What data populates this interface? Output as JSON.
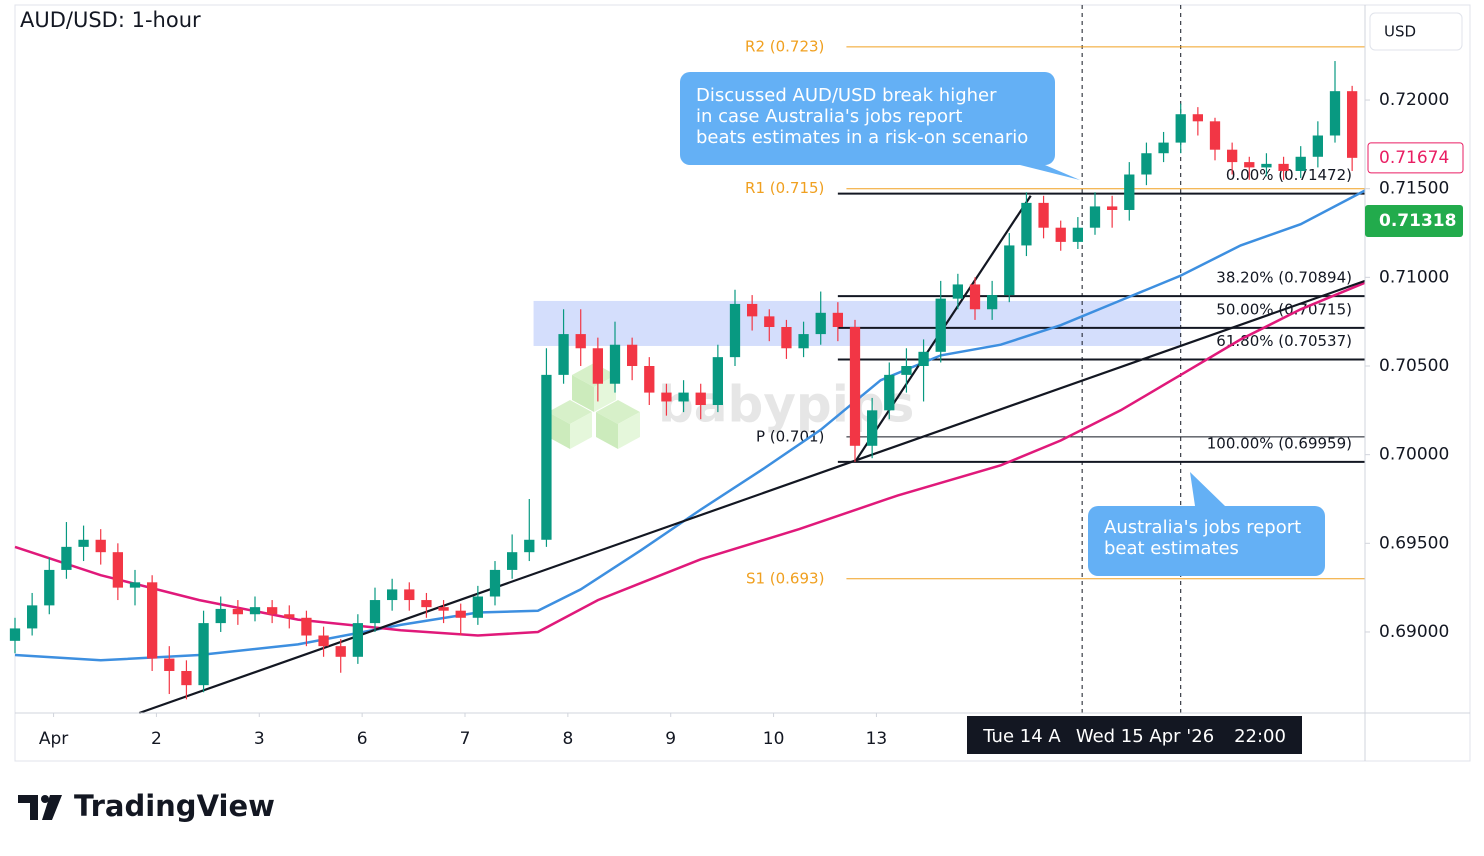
{
  "chart_data": {
    "type": "candlestick",
    "title": "AUD/USD: 1-hour",
    "currency": "USD",
    "watermark": "babypips",
    "brand": "TradingView",
    "up_color": "#089981",
    "down_color": "#f23645",
    "xlim": [
      0,
      315
    ],
    "ylim": [
      0.68543,
      0.72536
    ],
    "xticks": [
      {
        "value": 9,
        "label": "Apr"
      },
      {
        "value": 33,
        "label": "2"
      },
      {
        "value": 57,
        "label": "3"
      },
      {
        "value": 81,
        "label": "6"
      },
      {
        "value": 105,
        "label": "7"
      },
      {
        "value": 129,
        "label": "8"
      },
      {
        "value": 153,
        "label": "9"
      },
      {
        "value": 177,
        "label": "10"
      },
      {
        "value": 201,
        "label": "13"
      }
    ],
    "yticks": [
      {
        "value": 0.72,
        "label": "0.72000"
      },
      {
        "value": 0.715,
        "label": "0.71500"
      },
      {
        "value": 0.71,
        "label": "0.71000"
      },
      {
        "value": 0.705,
        "label": "0.70500"
      },
      {
        "value": 0.7,
        "label": "0.70000"
      },
      {
        "value": 0.695,
        "label": "0.69500"
      },
      {
        "value": 0.69,
        "label": "0.69000"
      }
    ],
    "crosshair_label": [
      "Tue 14 A",
      "Wed 15 Apr '26",
      "22:00"
    ],
    "vlines": [
      249,
      272
    ],
    "last_price": 0.71674,
    "last_price_color": "#e91e63",
    "marker_price": 0.71318,
    "marker_price_color": "#22ab4c",
    "candles": {
      "x": [
        0,
        4,
        8,
        12,
        16,
        20,
        24,
        28,
        32,
        36,
        40,
        44,
        48,
        52,
        56,
        60,
        64,
        68,
        72,
        76,
        80,
        84,
        88,
        92,
        96,
        100,
        104,
        108,
        112,
        116,
        120,
        124,
        128,
        132,
        136,
        140,
        144,
        148,
        152,
        156,
        160,
        164,
        168,
        172,
        176,
        180,
        184,
        188,
        192,
        196,
        200,
        204,
        208,
        212,
        216,
        220,
        224,
        228,
        232,
        236,
        240,
        244,
        248,
        252,
        256,
        260,
        264,
        268,
        272,
        276,
        280,
        284,
        288,
        292,
        296,
        300,
        304,
        308,
        312
      ],
      "open": [
        0.6895,
        0.6902,
        0.6915,
        0.6935,
        0.6948,
        0.6952,
        0.6945,
        0.6925,
        0.6928,
        0.6885,
        0.6878,
        0.687,
        0.6905,
        0.6913,
        0.691,
        0.6914,
        0.691,
        0.6908,
        0.6898,
        0.6892,
        0.6886,
        0.6905,
        0.6918,
        0.6924,
        0.6918,
        0.6914,
        0.6912,
        0.6908,
        0.692,
        0.6935,
        0.6945,
        0.6952,
        0.7045,
        0.7068,
        0.706,
        0.704,
        0.7062,
        0.705,
        0.7035,
        0.703,
        0.7035,
        0.7028,
        0.7055,
        0.7085,
        0.7078,
        0.7072,
        0.706,
        0.7068,
        0.708,
        0.7072,
        0.7005,
        0.7025,
        0.7045,
        0.705,
        0.7058,
        0.7088,
        0.7096,
        0.7082,
        0.709,
        0.7118,
        0.7142,
        0.7128,
        0.712,
        0.7128,
        0.714,
        0.7138,
        0.7158,
        0.717,
        0.7176,
        0.7192,
        0.7188,
        0.7172,
        0.7165,
        0.7162,
        0.7164,
        0.716,
        0.7168,
        0.718,
        0.7205
      ],
      "high": [
        0.6908,
        0.6922,
        0.6942,
        0.6962,
        0.696,
        0.6958,
        0.695,
        0.6935,
        0.6932,
        0.6892,
        0.6884,
        0.6912,
        0.692,
        0.6918,
        0.692,
        0.6918,
        0.6915,
        0.6912,
        0.6903,
        0.6896,
        0.691,
        0.6925,
        0.693,
        0.6928,
        0.6922,
        0.6918,
        0.6916,
        0.6926,
        0.694,
        0.6955,
        0.6975,
        0.706,
        0.7082,
        0.7082,
        0.7066,
        0.7075,
        0.7066,
        0.7055,
        0.704,
        0.7042,
        0.704,
        0.7062,
        0.7093,
        0.709,
        0.7082,
        0.7076,
        0.7075,
        0.7092,
        0.7086,
        0.7076,
        0.7032,
        0.7052,
        0.706,
        0.7065,
        0.7098,
        0.7102,
        0.71,
        0.7098,
        0.7125,
        0.7148,
        0.7146,
        0.7132,
        0.7134,
        0.7148,
        0.7146,
        0.7165,
        0.7176,
        0.7182,
        0.7198,
        0.7196,
        0.719,
        0.7176,
        0.7168,
        0.717,
        0.7168,
        0.7174,
        0.7188,
        0.7222,
        0.7208
      ],
      "low": [
        0.6888,
        0.6898,
        0.691,
        0.693,
        0.694,
        0.6938,
        0.6918,
        0.6915,
        0.6878,
        0.6865,
        0.6862,
        0.6866,
        0.69,
        0.6904,
        0.6906,
        0.6905,
        0.6902,
        0.6892,
        0.6886,
        0.6877,
        0.6882,
        0.69,
        0.6912,
        0.6912,
        0.6908,
        0.6905,
        0.6898,
        0.6904,
        0.6915,
        0.693,
        0.694,
        0.6948,
        0.704,
        0.705,
        0.703,
        0.7035,
        0.7042,
        0.7028,
        0.7022,
        0.7024,
        0.702,
        0.7024,
        0.705,
        0.707,
        0.7064,
        0.7054,
        0.7055,
        0.7062,
        0.7064,
        0.69959,
        0.6998,
        0.702,
        0.7035,
        0.703,
        0.7052,
        0.7082,
        0.7076,
        0.7076,
        0.7086,
        0.7112,
        0.7122,
        0.7115,
        0.7116,
        0.7124,
        0.7128,
        0.7132,
        0.7152,
        0.7165,
        0.717,
        0.718,
        0.7166,
        0.7158,
        0.7155,
        0.7157,
        0.7155,
        0.7156,
        0.7162,
        0.7176,
        0.716
      ],
      "close": [
        0.6902,
        0.6915,
        0.6935,
        0.6948,
        0.6952,
        0.6945,
        0.6925,
        0.6928,
        0.6885,
        0.6878,
        0.687,
        0.6905,
        0.6913,
        0.691,
        0.6914,
        0.691,
        0.6908,
        0.6898,
        0.6892,
        0.6886,
        0.6905,
        0.6918,
        0.6924,
        0.6918,
        0.6914,
        0.6912,
        0.6908,
        0.692,
        0.6935,
        0.6945,
        0.6952,
        0.7045,
        0.7068,
        0.706,
        0.704,
        0.7062,
        0.705,
        0.7035,
        0.703,
        0.7035,
        0.7028,
        0.7055,
        0.7085,
        0.7078,
        0.7072,
        0.706,
        0.7068,
        0.708,
        0.7072,
        0.7005,
        0.7025,
        0.7045,
        0.705,
        0.7058,
        0.7088,
        0.7096,
        0.7082,
        0.709,
        0.7118,
        0.7142,
        0.7128,
        0.712,
        0.7128,
        0.714,
        0.7138,
        0.7158,
        0.717,
        0.7176,
        0.7192,
        0.7188,
        0.7172,
        0.7165,
        0.7162,
        0.7164,
        0.716,
        0.7168,
        0.718,
        0.7205,
        0.71674
      ]
    },
    "moving_averages": [
      {
        "color": "#3d8fe0",
        "x": [
          0,
          20,
          43,
          66,
          90,
          108,
          122,
          132,
          146,
          160,
          174,
          188,
          202,
          216,
          230,
          244,
          258,
          272,
          286,
          300,
          315
        ],
        "values": [
          0.6887,
          0.6884,
          0.6887,
          0.6893,
          0.6904,
          0.6911,
          0.6912,
          0.6924,
          0.6946,
          0.6969,
          0.6991,
          0.7014,
          0.7042,
          0.7056,
          0.7062,
          0.7073,
          0.7087,
          0.7101,
          0.7118,
          0.713,
          0.7149
        ]
      },
      {
        "color": "#e0197a",
        "x": [
          0,
          20,
          43,
          66,
          90,
          108,
          122,
          136,
          160,
          183,
          206,
          230,
          244,
          258,
          272,
          286,
          300,
          315
        ],
        "values": [
          0.6948,
          0.6932,
          0.6918,
          0.6907,
          0.6901,
          0.6898,
          0.69,
          0.6918,
          0.6941,
          0.6958,
          0.6977,
          0.6994,
          0.7008,
          0.7025,
          0.7045,
          0.7065,
          0.7082,
          0.7097
        ]
      }
    ],
    "trendlines": [
      {
        "x": [
          29,
          315
        ],
        "y": [
          0.68543,
          0.7098
        ]
      },
      {
        "x": [
          196,
          237
        ],
        "y": [
          0.69959,
          0.7146
        ]
      }
    ],
    "zone": {
      "x": [
        121,
        272
      ],
      "y": [
        0.70613,
        0.70867
      ],
      "color": "#c9d6fb"
    },
    "pivots": [
      {
        "label": "R2 (0.723)",
        "value": 0.723,
        "color": "#f0a020"
      },
      {
        "label": "R1 (0.715)",
        "value": 0.715,
        "color": "#f0a020"
      },
      {
        "label": "P (0.701)",
        "value": 0.701,
        "color": "#131722"
      },
      {
        "label": "S1 (0.693)",
        "value": 0.693,
        "color": "#f0a020"
      }
    ],
    "pivot_start": 194,
    "fib_start": 192,
    "fib_levels": [
      {
        "label": "0.00% (0.71472)",
        "value": 0.71472
      },
      {
        "label": "38.20% (0.70894)",
        "value": 0.70894
      },
      {
        "label": "50.00% (0.70715)",
        "value": 0.70715
      },
      {
        "label": "61.80% (0.70537)",
        "value": 0.70537
      },
      {
        "label": "100.00% (0.69959)",
        "value": 0.69959
      }
    ],
    "callouts": [
      {
        "lines": [
          "Discussed AUD/USD break higher",
          "in case Australia's jobs report",
          "beats estimates in a risk-on scenario"
        ]
      },
      {
        "lines": [
          "Australia's jobs report",
          "beat estimates"
        ]
      }
    ]
  }
}
